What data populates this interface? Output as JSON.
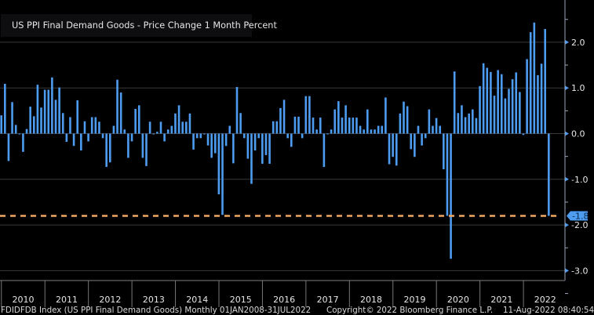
{
  "chart_data": {
    "type": "bar",
    "title": "US PPI Final Demand Goods - Price Change 1 Month Percent",
    "legend": [
      "US PPI Final Demand Goods - Price Change 1 Month Percent"
    ],
    "legend_position": "top-left",
    "frequency": "monthly",
    "start_month": "2009-12",
    "end_month": "2022-07",
    "values": [
      0.4,
      1.09,
      -0.6,
      0.69,
      0.19,
      0.0,
      -0.4,
      0.1,
      0.59,
      0.38,
      1.07,
      0.57,
      0.96,
      0.96,
      1.23,
      0.74,
      1.01,
      0.45,
      -0.18,
      0.36,
      -0.27,
      0.73,
      -0.37,
      0.27,
      -0.17,
      0.36,
      0.36,
      0.26,
      -0.1,
      -0.73,
      -0.63,
      0.17,
      1.18,
      0.9,
      0.09,
      -0.53,
      -0.17,
      0.54,
      0.62,
      -0.53,
      -0.71,
      0.26,
      0.0,
      0.04,
      0.26,
      -0.17,
      0.09,
      0.17,
      0.44,
      0.62,
      0.26,
      0.26,
      0.44,
      -0.35,
      -0.1,
      -0.1,
      0.0,
      -0.26,
      -0.53,
      -0.43,
      -1.33,
      -1.78,
      -0.27,
      0.17,
      -0.65,
      1.02,
      0.45,
      -0.1,
      -0.55,
      -1.1,
      -0.37,
      -0.1,
      -0.66,
      -0.47,
      -0.66,
      0.27,
      0.27,
      0.56,
      0.74,
      -0.1,
      -0.29,
      0.37,
      0.37,
      -0.1,
      0.82,
      0.82,
      0.35,
      0.09,
      0.35,
      -0.73,
      0.0,
      0.09,
      0.53,
      0.71,
      0.35,
      0.62,
      0.35,
      0.35,
      0.35,
      0.17,
      0.09,
      0.53,
      0.09,
      0.09,
      0.17,
      0.17,
      0.79,
      -0.67,
      -0.51,
      -0.7,
      0.44,
      0.7,
      0.6,
      -0.34,
      -0.51,
      0.17,
      -0.26,
      -0.1,
      0.53,
      0.17,
      0.34,
      0.17,
      -0.78,
      -1.8,
      -2.74,
      1.36,
      0.45,
      0.62,
      0.36,
      0.44,
      0.53,
      0.34,
      1.04,
      1.54,
      1.44,
      1.35,
      0.83,
      1.39,
      1.3,
      0.77,
      0.98,
      1.19,
      1.34,
      0.91,
      -0.03,
      1.63,
      2.22,
      2.43,
      1.28,
      1.53,
      2.29,
      -1.8
    ],
    "ylim": [
      -3.3,
      2.9
    ],
    "yticks": [
      "2.0",
      "1.0",
      "0.0",
      "-1.0",
      "-2.0",
      "-3.0"
    ],
    "ytick_values": [
      2,
      1,
      0,
      -1,
      -2,
      -3
    ],
    "xticks": [
      "2010",
      "2011",
      "2012",
      "2013",
      "2014",
      "2015",
      "2016",
      "2017",
      "2018",
      "2019",
      "2020",
      "2021",
      "2022"
    ],
    "last_value": -1.8,
    "last_value_label": "-1.8",
    "grid": true,
    "xlabel": "",
    "ylabel": ""
  },
  "colors": {
    "bar": "#4d9cf0",
    "reference_line": "#f0a860",
    "grid": "#3a3a3a",
    "axis": "#9aa6b8",
    "label_bg": "#4d9cf0"
  },
  "footer": {
    "left": "FDIDFDB Index (US PPI Final Demand Goods)  Monthly 01JAN2008-31JUL2022",
    "center": "Copyright© 2022 Bloomberg Finance L.P.",
    "right": "11-Aug-2022 08:40:54"
  }
}
